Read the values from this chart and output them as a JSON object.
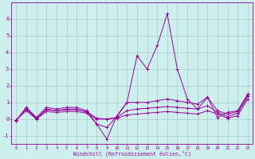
{
  "xlabel": "Windchill (Refroidissement éolien,°C)",
  "background_color": "#cdf0ee",
  "grid_color": "#aec8c8",
  "line_color": "#990099",
  "xlim": [
    -0.5,
    23.5
  ],
  "ylim": [
    -1.5,
    7.0
  ],
  "yticks": [
    -1,
    0,
    1,
    2,
    3,
    4,
    5,
    6
  ],
  "xticks": [
    0,
    1,
    2,
    3,
    4,
    5,
    6,
    7,
    8,
    9,
    10,
    11,
    12,
    13,
    14,
    15,
    16,
    17,
    18,
    19,
    20,
    21,
    22,
    23
  ],
  "series": [
    [
      0,
      -0.1
    ],
    [
      1,
      0.7
    ],
    [
      2,
      0.1
    ],
    [
      3,
      0.7
    ],
    [
      4,
      0.6
    ],
    [
      5,
      0.7
    ],
    [
      6,
      0.7
    ],
    [
      7,
      0.5
    ],
    [
      8,
      -0.3
    ],
    [
      9,
      -1.2
    ],
    [
      10,
      0.2
    ],
    [
      11,
      1.0
    ],
    [
      12,
      3.8
    ],
    [
      13,
      3.0
    ],
    [
      14,
      4.4
    ],
    [
      15,
      6.3
    ],
    [
      16,
      3.0
    ],
    [
      17,
      1.2
    ],
    [
      18,
      0.6
    ],
    [
      19,
      1.3
    ],
    [
      20,
      0.1
    ],
    [
      21,
      0.4
    ],
    [
      22,
      0.5
    ],
    [
      23,
      1.5
    ]
  ],
  "series2": [
    [
      0,
      -0.1
    ],
    [
      1,
      0.7
    ],
    [
      2,
      0.0
    ],
    [
      3,
      0.6
    ],
    [
      4,
      0.5
    ],
    [
      5,
      0.6
    ],
    [
      6,
      0.6
    ],
    [
      7,
      0.4
    ],
    [
      8,
      -0.3
    ],
    [
      9,
      -0.5
    ],
    [
      10,
      0.15
    ],
    [
      11,
      1.0
    ],
    [
      12,
      1.0
    ],
    [
      13,
      1.0
    ],
    [
      14,
      1.1
    ],
    [
      15,
      1.2
    ],
    [
      16,
      1.1
    ],
    [
      17,
      1.0
    ],
    [
      18,
      0.9
    ],
    [
      19,
      1.3
    ],
    [
      20,
      0.5
    ],
    [
      21,
      0.3
    ],
    [
      22,
      0.45
    ],
    [
      23,
      1.45
    ]
  ],
  "series3": [
    [
      0,
      -0.05
    ],
    [
      1,
      0.6
    ],
    [
      2,
      0.05
    ],
    [
      3,
      0.55
    ],
    [
      4,
      0.5
    ],
    [
      5,
      0.55
    ],
    [
      6,
      0.55
    ],
    [
      7,
      0.45
    ],
    [
      8,
      0.05
    ],
    [
      9,
      0.0
    ],
    [
      10,
      0.1
    ],
    [
      11,
      0.5
    ],
    [
      12,
      0.6
    ],
    [
      13,
      0.65
    ],
    [
      14,
      0.7
    ],
    [
      15,
      0.75
    ],
    [
      16,
      0.7
    ],
    [
      17,
      0.65
    ],
    [
      18,
      0.6
    ],
    [
      19,
      0.8
    ],
    [
      20,
      0.4
    ],
    [
      21,
      0.15
    ],
    [
      22,
      0.35
    ],
    [
      23,
      1.35
    ]
  ],
  "series4": [
    [
      0,
      -0.05
    ],
    [
      1,
      0.5
    ],
    [
      2,
      0.0
    ],
    [
      3,
      0.45
    ],
    [
      4,
      0.4
    ],
    [
      5,
      0.45
    ],
    [
      6,
      0.45
    ],
    [
      7,
      0.35
    ],
    [
      8,
      0.0
    ],
    [
      9,
      0.0
    ],
    [
      10,
      0.05
    ],
    [
      11,
      0.25
    ],
    [
      12,
      0.3
    ],
    [
      13,
      0.35
    ],
    [
      14,
      0.4
    ],
    [
      15,
      0.45
    ],
    [
      16,
      0.4
    ],
    [
      17,
      0.35
    ],
    [
      18,
      0.3
    ],
    [
      19,
      0.5
    ],
    [
      20,
      0.3
    ],
    [
      21,
      0.05
    ],
    [
      22,
      0.2
    ],
    [
      23,
      1.2
    ]
  ]
}
